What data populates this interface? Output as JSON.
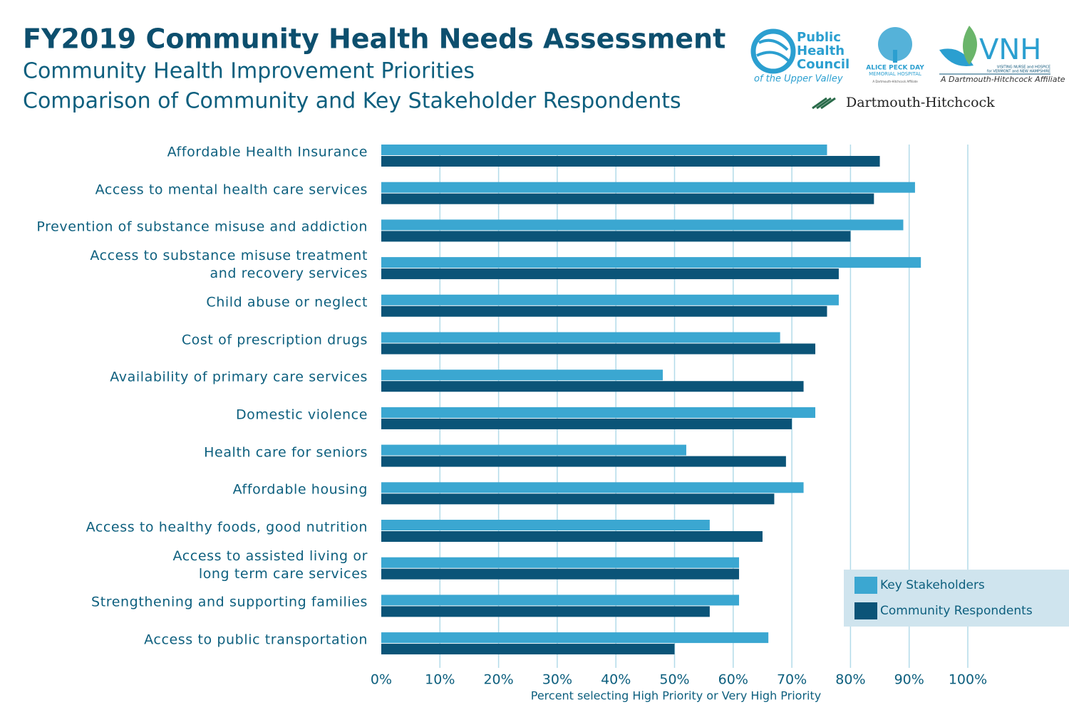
{
  "chart_data": {
    "type": "bar",
    "orientation": "horizontal",
    "title": "FY2019 Community Health Needs Assessment",
    "subtitles": [
      "Community Health Improvement Priorities",
      "Comparison of Community and Key Stakeholder Respondents"
    ],
    "x_label": "Percent selecting High Priority or Very High Priority",
    "categories": [
      "Affordable Health Insurance",
      "Access to mental health care services",
      "Prevention of substance misuse and addiction",
      "Access to substance misuse treatment\nand recovery services",
      "Child abuse or neglect",
      "Cost of prescription drugs",
      "Availability of primary care services",
      "Domestic violence",
      "Health care for seniors",
      "Affordable housing",
      "Access to healthy foods, good nutrition",
      "Access to assisted living or\nlong term care services",
      "Strengthening and supporting families",
      "Access to public transportation"
    ],
    "series": [
      {
        "name": "Key Stakeholders",
        "color": "#3ba7d1",
        "values": [
          76,
          91,
          89,
          92,
          78,
          68,
          48,
          74,
          52,
          72,
          56,
          61,
          61,
          66
        ]
      },
      {
        "name": "Community Respondents",
        "color": "#0b5478",
        "values": [
          85,
          84,
          80,
          78,
          76,
          74,
          72,
          70,
          69,
          67,
          65,
          61,
          56,
          50
        ]
      }
    ],
    "xlim": [
      0,
      100
    ],
    "xticks": [
      {
        "value": 0,
        "label": "0%"
      },
      {
        "value": 10,
        "label": "10%"
      },
      {
        "value": 20,
        "label": "20%"
      },
      {
        "value": 30,
        "label": "30%"
      },
      {
        "value": 40,
        "label": "40%"
      },
      {
        "value": 50,
        "label": "50%"
      },
      {
        "value": 60,
        "label": "60%"
      },
      {
        "value": 70,
        "label": "70%"
      },
      {
        "value": 80,
        "label": "80%"
      },
      {
        "value": 90,
        "label": "90%"
      },
      {
        "value": 100,
        "label": "100%"
      }
    ],
    "grid": true,
    "legend": "lower right"
  },
  "logos": {
    "phc": [
      "Public",
      "Health",
      "Council"
    ],
    "phc_tagline": "of the Upper Valley",
    "apd": [
      "ALICE PECK DAY",
      "MEMORIAL HOSPITAL"
    ],
    "apd_affiliate": "A Dartmouth-Hitchcock Affiliate",
    "vnh": "VNH",
    "vnh_sub": [
      "VISITING NURSE and HOSPICE",
      "for VERMONT and NEW HAMPSHIRE"
    ],
    "vnh_affiliate": "A Dartmouth-Hitchcock Affiliate",
    "dh": "Dartmouth-Hitchcock"
  }
}
